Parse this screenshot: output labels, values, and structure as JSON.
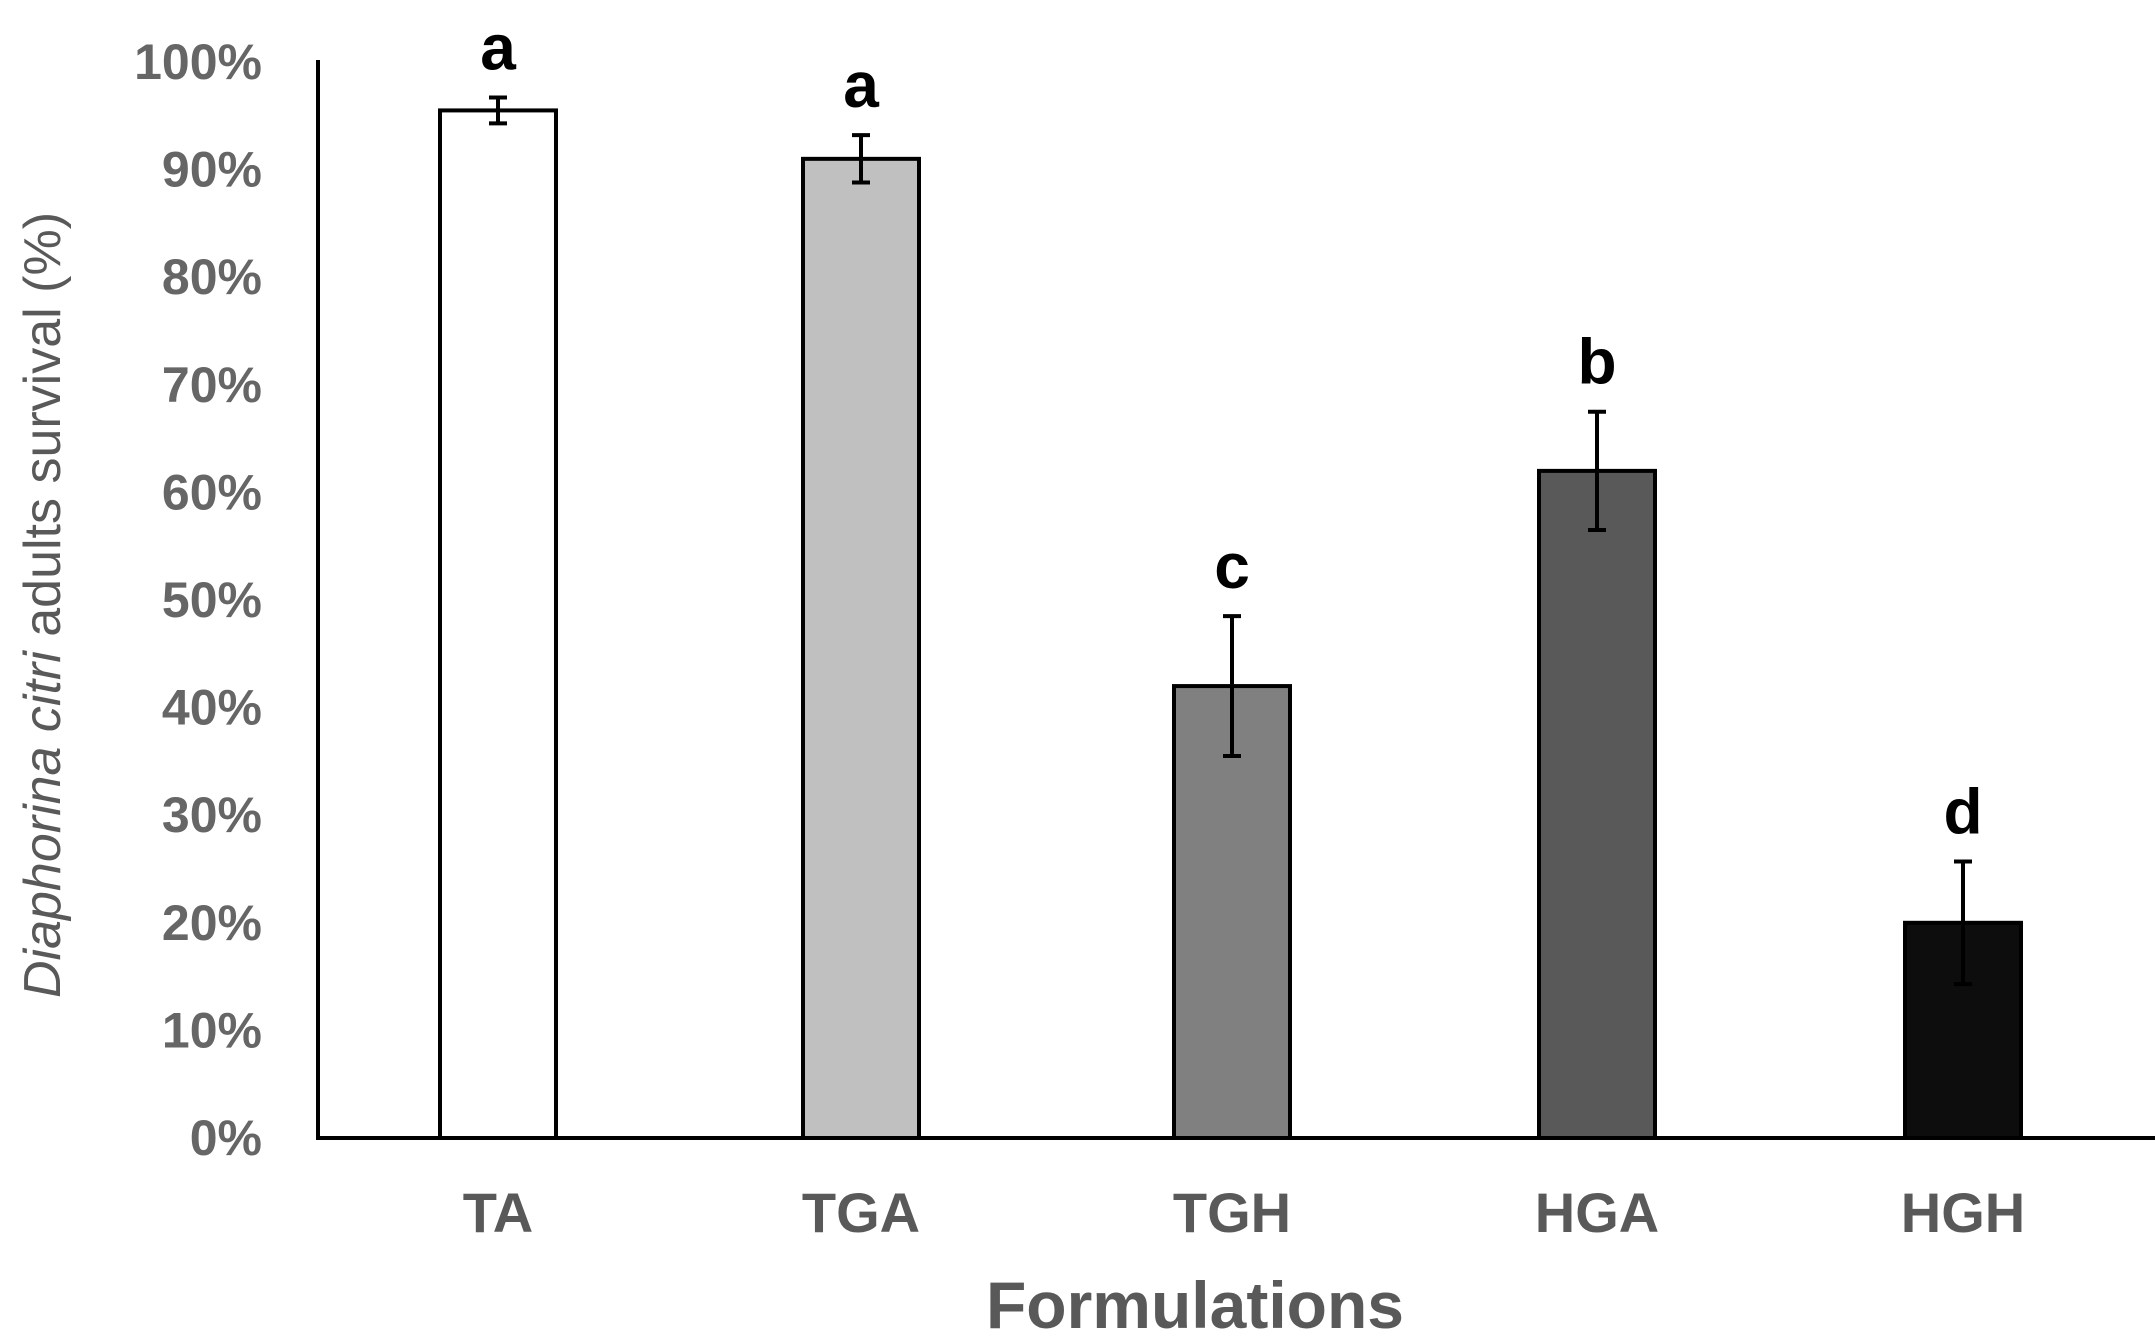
{
  "chart_data": {
    "type": "bar",
    "categories": [
      "TA",
      "TGA",
      "TGH",
      "HGA",
      "HGH"
    ],
    "values": [
      95.5,
      91,
      42,
      62,
      20
    ],
    "errors": [
      1.2,
      2.2,
      6.5,
      5.5,
      5.7
    ],
    "significance_letters": [
      "a",
      "a",
      "c",
      "b",
      "d"
    ],
    "bar_colors": [
      "#ffffff",
      "#c0c0c0",
      "#808080",
      "#595959",
      "#0d0d0d"
    ],
    "ylim": [
      0,
      100
    ],
    "y_ticks": [
      0,
      10,
      20,
      30,
      40,
      50,
      60,
      70,
      80,
      90,
      100
    ],
    "y_tick_labels": [
      "0%",
      "10%",
      "20%",
      "30%",
      "40%",
      "50%",
      "60%",
      "70%",
      "80%",
      "90%",
      "100%"
    ],
    "xlabel": "Formulations",
    "ylabel_italic": "Diaphorina citri",
    "ylabel_rest": " adults survival (%)",
    "title": "",
    "grid": false
  }
}
